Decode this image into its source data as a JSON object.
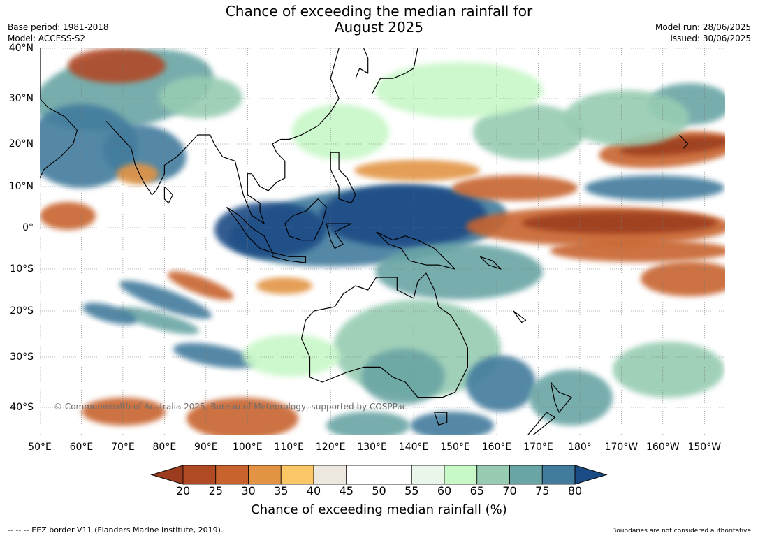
{
  "header": {
    "title_line1": "Chance of exceeding the median rainfall for",
    "title_line2": "August 2025",
    "base_period": "Base period: 1981-2018",
    "model": "Model: ACCESS-S2",
    "model_run": "Model run: 28/06/2025",
    "issued": "Issued: 30/06/2025"
  },
  "map": {
    "region": "Indo-Pacific, 50°E to 155°W, 46°S to 40°N",
    "lat_labels": [
      {
        "label": "40°N",
        "value": 40
      },
      {
        "label": "30°N",
        "value": 30
      },
      {
        "label": "20°N",
        "value": 20
      },
      {
        "label": "10°N",
        "value": 10
      },
      {
        "label": "0°",
        "value": 0
      },
      {
        "label": "10°S",
        "value": -10
      },
      {
        "label": "20°S",
        "value": -20
      },
      {
        "label": "30°S",
        "value": -30
      },
      {
        "label": "40°S",
        "value": -40
      }
    ],
    "lon_labels": [
      {
        "label": "50°E",
        "value": 50
      },
      {
        "label": "60°E",
        "value": 60
      },
      {
        "label": "70°E",
        "value": 70
      },
      {
        "label": "80°E",
        "value": 80
      },
      {
        "label": "90°E",
        "value": 90
      },
      {
        "label": "100°E",
        "value": 100
      },
      {
        "label": "110°E",
        "value": 110
      },
      {
        "label": "120°E",
        "value": 120
      },
      {
        "label": "130°E",
        "value": 130
      },
      {
        "label": "140°E",
        "value": 140
      },
      {
        "label": "150°E",
        "value": 150
      },
      {
        "label": "160°E",
        "value": 160
      },
      {
        "label": "170°E",
        "value": 170
      },
      {
        "label": "180°",
        "value": 180
      },
      {
        "label": "170°W",
        "value": 190
      },
      {
        "label": "160°W",
        "value": 200
      },
      {
        "label": "150°W",
        "value": 210
      }
    ],
    "copyright": "© Commonwealth of Australia 2025, Bureau of Meteorology, supported by COSPPac"
  },
  "legend": {
    "label": "Chance of exceeding median rainfall (%)",
    "ticks": [
      "20",
      "25",
      "30",
      "35",
      "40",
      "45",
      "50",
      "55",
      "60",
      "65",
      "70",
      "75",
      "80"
    ],
    "colors": [
      "#9c3c1e",
      "#b04a25",
      "#c8632d",
      "#e29444",
      "#fbc766",
      "#ece8e0",
      "#ffffff",
      "#ffffff",
      "#ebf6eb",
      "#c8f7c8",
      "#97ccb2",
      "#6aa5a5",
      "#437b9d",
      "#1b4b85"
    ]
  },
  "footer": {
    "eez_note": "--  --  -- EEZ border V11 (Flanders Marine Institute, 2019).",
    "boundaries_note": "Boundaries are not considered authoritative"
  }
}
